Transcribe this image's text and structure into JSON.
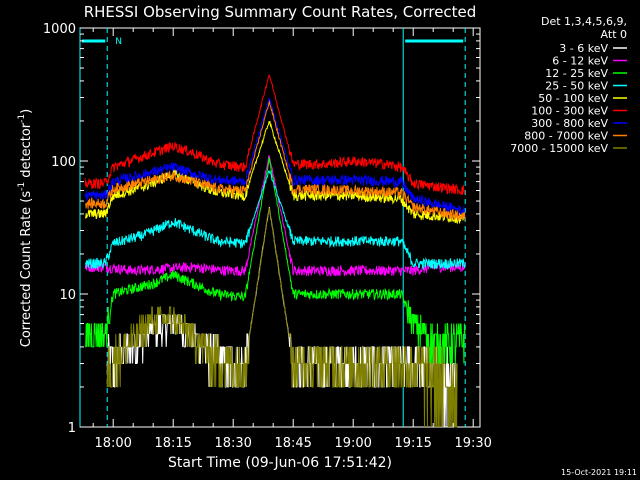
{
  "chart_data": {
    "type": "line",
    "title": "RHESSI Observing Summary Count Rates, Corrected",
    "xlabel": "Start Time (09-Jun-06 17:51:42)",
    "ylabel_main": "Corrected Count Rate (s",
    "ylabel_sup1": "-1",
    "ylabel_mid": " detector",
    "ylabel_sup2": "-1",
    "ylabel_end": ")",
    "yscale": "log",
    "ylim": [
      1,
      1000
    ],
    "xlim_minutes": [
      1071.7,
      1171.7
    ],
    "y_ticks": [
      {
        "value": 1,
        "label": "1"
      },
      {
        "value": 10,
        "label": "10"
      },
      {
        "value": 100,
        "label": "100"
      },
      {
        "value": 1000,
        "label": "1000"
      }
    ],
    "x_ticks": [
      {
        "minute": 1080,
        "label": "18:00"
      },
      {
        "minute": 1095,
        "label": "18:15"
      },
      {
        "minute": 1110,
        "label": "18:30"
      },
      {
        "minute": 1125,
        "label": "18:45"
      },
      {
        "minute": 1140,
        "label": "19:00"
      },
      {
        "minute": 1155,
        "label": "19:15"
      },
      {
        "minute": 1170,
        "label": "19:30"
      }
    ],
    "legend_header": [
      "Det 1,3,4,5,6,9,",
      "Att 0"
    ],
    "legend_placement": "top-right, outside plot",
    "night_marker_label": "N",
    "night_intervals_minutes": [
      [
        1071.7,
        1078.5
      ],
      [
        1152.5,
        1168.0
      ]
    ],
    "day_night_boundaries_minutes": [
      1071.7,
      1078.5,
      1152.5,
      1168.0
    ],
    "dashed_boundaries_minutes": [
      1078.5,
      1168.0
    ],
    "bad_flag_color": "#00ffff",
    "flare_peak_minute": 1119.0,
    "series": [
      {
        "name": "3 - 6 keV",
        "color": "#ffffff",
        "profile": [
          [
            1078.5,
            3.0
          ],
          [
            1085,
            4.0
          ],
          [
            1090,
            5.5
          ],
          [
            1095,
            6.0
          ],
          [
            1098,
            5.5
          ],
          [
            1103,
            4.0
          ],
          [
            1108,
            3.0
          ],
          [
            1113,
            3.0
          ],
          [
            1119,
            45
          ],
          [
            1125,
            3.0
          ],
          [
            1135,
            3.0
          ],
          [
            1150,
            3.0
          ],
          [
            1155,
            3.0
          ],
          [
            1166,
            2.5
          ]
        ]
      },
      {
        "name": "6 - 12 keV",
        "color": "#ff00ff",
        "profile": [
          [
            1073,
            16
          ],
          [
            1078,
            16
          ],
          [
            1085,
            15
          ],
          [
            1100,
            16
          ],
          [
            1108,
            15
          ],
          [
            1113,
            15
          ],
          [
            1119,
            110
          ],
          [
            1125,
            15
          ],
          [
            1140,
            15
          ],
          [
            1150,
            15
          ],
          [
            1155,
            15
          ],
          [
            1160,
            16
          ],
          [
            1168,
            16
          ]
        ]
      },
      {
        "name": "12 - 25 keV",
        "color": "#00ff00",
        "profile": [
          [
            1073,
            5.0
          ],
          [
            1078,
            5.0
          ],
          [
            1080,
            10
          ],
          [
            1085,
            11
          ],
          [
            1090,
            12
          ],
          [
            1095,
            14
          ],
          [
            1100,
            12
          ],
          [
            1106,
            10
          ],
          [
            1113,
            9.5
          ],
          [
            1119,
            105
          ],
          [
            1125,
            10
          ],
          [
            1140,
            10
          ],
          [
            1152,
            10
          ],
          [
            1155,
            6
          ],
          [
            1160,
            4.5
          ],
          [
            1168,
            4.5
          ]
        ]
      },
      {
        "name": "25 - 50 keV",
        "color": "#00ffff",
        "profile": [
          [
            1073,
            17
          ],
          [
            1078,
            17
          ],
          [
            1080,
            24
          ],
          [
            1088,
            28
          ],
          [
            1095,
            35
          ],
          [
            1100,
            30
          ],
          [
            1106,
            25
          ],
          [
            1113,
            24
          ],
          [
            1119,
            85
          ],
          [
            1125,
            25
          ],
          [
            1140,
            25
          ],
          [
            1152,
            25
          ],
          [
            1155,
            17
          ],
          [
            1168,
            17
          ]
        ]
      },
      {
        "name": "50 - 100 keV",
        "color": "#ffff00",
        "profile": [
          [
            1073,
            40
          ],
          [
            1078,
            40
          ],
          [
            1080,
            55
          ],
          [
            1088,
            65
          ],
          [
            1095,
            80
          ],
          [
            1100,
            70
          ],
          [
            1106,
            58
          ],
          [
            1113,
            55
          ],
          [
            1119,
            200
          ],
          [
            1125,
            55
          ],
          [
            1140,
            55
          ],
          [
            1152,
            52
          ],
          [
            1155,
            40
          ],
          [
            1168,
            37
          ]
        ]
      },
      {
        "name": "100 - 300 keV",
        "color": "#ff0000",
        "profile": [
          [
            1073,
            68
          ],
          [
            1078,
            68
          ],
          [
            1080,
            90
          ],
          [
            1088,
            110
          ],
          [
            1095,
            130
          ],
          [
            1100,
            115
          ],
          [
            1106,
            95
          ],
          [
            1113,
            90
          ],
          [
            1119,
            450
          ],
          [
            1125,
            95
          ],
          [
            1133,
            95
          ],
          [
            1140,
            100
          ],
          [
            1148,
            95
          ],
          [
            1152,
            90
          ],
          [
            1155,
            68
          ],
          [
            1168,
            60
          ]
        ]
      },
      {
        "name": "300 - 800 keV",
        "color": "#0000ff",
        "profile": [
          [
            1073,
            55
          ],
          [
            1078,
            55
          ],
          [
            1080,
            70
          ],
          [
            1088,
            80
          ],
          [
            1095,
            90
          ],
          [
            1100,
            80
          ],
          [
            1106,
            72
          ],
          [
            1113,
            70
          ],
          [
            1119,
            300
          ],
          [
            1125,
            72
          ],
          [
            1140,
            72
          ],
          [
            1152,
            70
          ],
          [
            1155,
            52
          ],
          [
            1168,
            42
          ]
        ]
      },
      {
        "name": "800 - 7000 keV",
        "color": "#ff8000",
        "profile": [
          [
            1073,
            48
          ],
          [
            1078,
            48
          ],
          [
            1080,
            62
          ],
          [
            1088,
            70
          ],
          [
            1095,
            78
          ],
          [
            1100,
            70
          ],
          [
            1106,
            62
          ],
          [
            1113,
            60
          ],
          [
            1119,
            280
          ],
          [
            1125,
            62
          ],
          [
            1140,
            60
          ],
          [
            1152,
            58
          ],
          [
            1155,
            45
          ],
          [
            1168,
            38
          ]
        ]
      },
      {
        "name": "7000 - 15000 keV",
        "color": "#808000",
        "profile": [
          [
            1078.5,
            3.0
          ],
          [
            1085,
            4.5
          ],
          [
            1090,
            6.5
          ],
          [
            1095,
            6.5
          ],
          [
            1098,
            5.5
          ],
          [
            1103,
            4.0
          ],
          [
            1108,
            3.0
          ],
          [
            1113,
            3.0
          ],
          [
            1119,
            45
          ],
          [
            1125,
            3.0
          ],
          [
            1135,
            3.0
          ],
          [
            1150,
            3.0
          ],
          [
            1155,
            3.0
          ],
          [
            1166,
            2.0
          ]
        ]
      }
    ]
  },
  "footer": {
    "date_stamp": "15-Oct-2021 19:11"
  }
}
